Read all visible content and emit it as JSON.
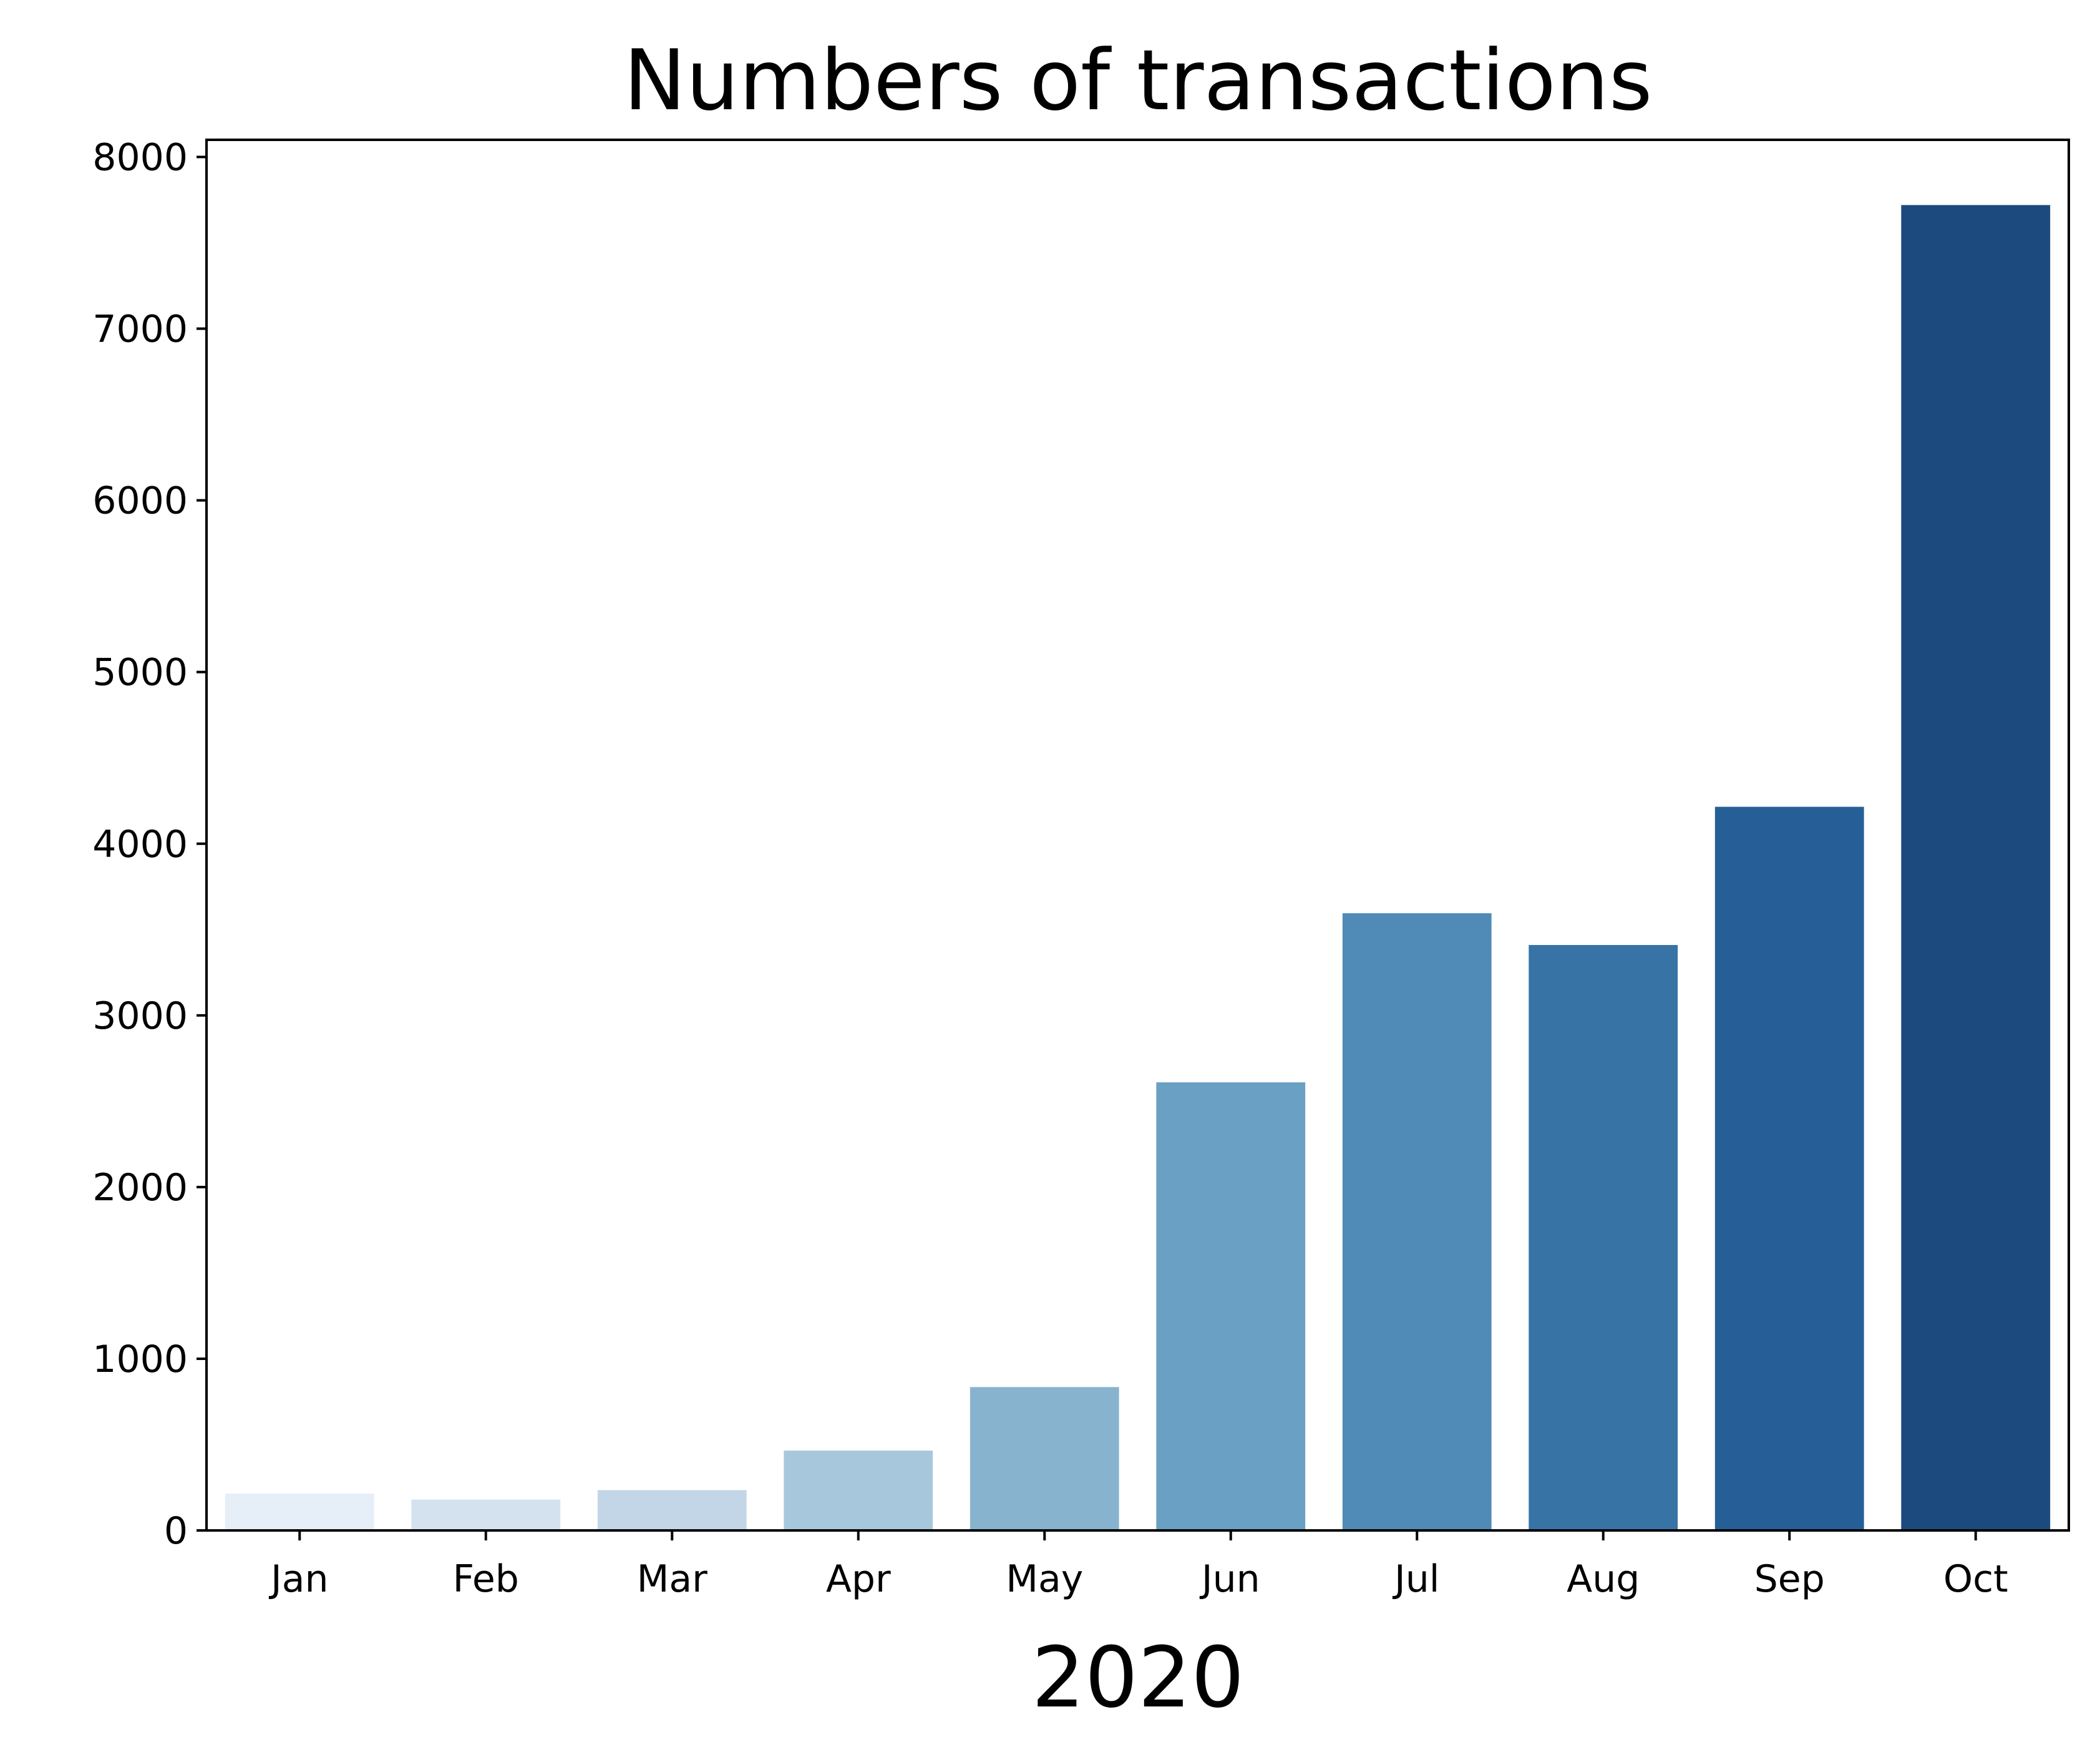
{
  "chart_data": {
    "type": "bar",
    "title": "Numbers of transactions",
    "xlabel": "2020",
    "ylabel": "",
    "categories": [
      "Jan",
      "Feb",
      "Mar",
      "Apr",
      "May",
      "Jun",
      "Jul",
      "Aug",
      "Sep",
      "Oct"
    ],
    "values": [
      215,
      180,
      235,
      465,
      835,
      2610,
      3595,
      3410,
      4215,
      7720
    ],
    "ylim": [
      0,
      8100
    ],
    "yticks": [
      0,
      1000,
      2000,
      3000,
      4000,
      5000,
      6000,
      7000,
      8000
    ],
    "ytick_labels": [
      "0",
      "1000",
      "2000",
      "3000",
      "4000",
      "5000",
      "6000",
      "7000",
      "8000"
    ],
    "colors": [
      "#e6eef8",
      "#d4e2f0",
      "#c2d6e7",
      "#a7c8dc",
      "#88b3cf",
      "#6aa0c3",
      "#4f8bb6",
      "#3873a6",
      "#265f97",
      "#1c4a7e"
    ],
    "grid": false,
    "legend": "none"
  }
}
